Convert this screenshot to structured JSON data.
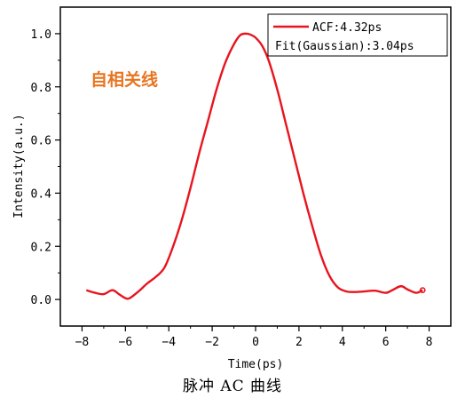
{
  "chart_data": {
    "type": "line",
    "xlabel": "Time(ps)",
    "ylabel": "Intensity(a.u.)",
    "xlim": [
      -9,
      9
    ],
    "ylim": [
      -0.1,
      1.1
    ],
    "xticks": [
      -8,
      -6,
      -4,
      -2,
      0,
      2,
      4,
      6,
      8
    ],
    "yticks": [
      0.0,
      0.2,
      0.4,
      0.6,
      0.8,
      1.0
    ],
    "xtick_labels": [
      "−8",
      "−6",
      "−4",
      "−2",
      "0",
      "2",
      "4",
      "6",
      "8"
    ],
    "ytick_labels": [
      "0.0",
      "0.2",
      "0.4",
      "0.6",
      "0.8",
      "1.0"
    ],
    "legend_position": "top-right",
    "grid": false,
    "annotation": "自相关线",
    "series": [
      {
        "name": "ACF:4.32ps",
        "color": "#e8141e",
        "x": [
          -7.8,
          -7.4,
          -7.0,
          -6.6,
          -6.3,
          -6.0,
          -5.8,
          -5.4,
          -5.0,
          -4.6,
          -4.2,
          -3.8,
          -3.4,
          -3.0,
          -2.6,
          -2.2,
          -1.8,
          -1.4,
          -1.0,
          -0.7,
          -0.4,
          -0.2,
          0.0,
          0.3,
          0.6,
          1.0,
          1.4,
          1.8,
          2.2,
          2.6,
          3.0,
          3.4,
          3.8,
          4.2,
          4.6,
          5.0,
          5.5,
          6.0,
          6.3,
          6.7,
          7.0,
          7.4,
          7.7
        ],
        "y": [
          0.035,
          0.025,
          0.02,
          0.035,
          0.02,
          0.005,
          0.005,
          0.03,
          0.06,
          0.085,
          0.12,
          0.2,
          0.3,
          0.42,
          0.55,
          0.67,
          0.79,
          0.89,
          0.96,
          0.995,
          1.0,
          0.995,
          0.985,
          0.955,
          0.9,
          0.79,
          0.66,
          0.53,
          0.4,
          0.28,
          0.17,
          0.09,
          0.045,
          0.03,
          0.028,
          0.03,
          0.033,
          0.025,
          0.035,
          0.05,
          0.038,
          0.025,
          0.035
        ]
      }
    ],
    "legend_extra": "Fit(Gaussian):3.04ps"
  },
  "caption": "脉冲 AC 曲线"
}
